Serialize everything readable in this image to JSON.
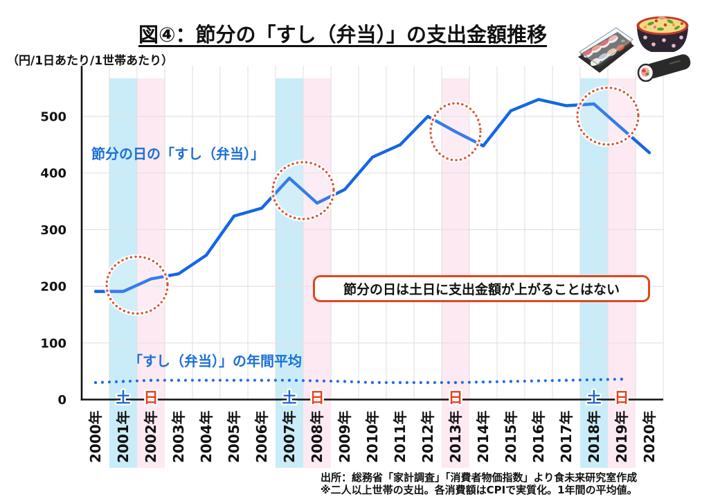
{
  "header": {
    "title": "図④：節分の「すし（弁当）」の支出金額推移",
    "unit_label": "（円/1日あたり/1世帯あたり）"
  },
  "chart_data": {
    "type": "line",
    "title": "図④：節分の「すし（弁当）」の支出金額推移",
    "xlabel": "",
    "ylabel": "（円/1日あたり/1世帯あたり）",
    "ylim": [
      0,
      590
    ],
    "yticks": [
      0,
      100,
      200,
      300,
      400,
      500
    ],
    "ytick_labels": [
      "0",
      "100",
      "200",
      "300",
      "400",
      "500"
    ],
    "grid": true,
    "legend": "none",
    "categories": [
      "2000年",
      "2001年",
      "2002年",
      "2003年",
      "2004年",
      "2005年",
      "2006年",
      "2007年",
      "2008年",
      "2009年",
      "2010年",
      "2011年",
      "2012年",
      "2013年",
      "2014年",
      "2015年",
      "2016年",
      "2017年",
      "2018年",
      "2019年",
      "2020年"
    ],
    "series": [
      {
        "name": "節分の日の「すし（弁当）」",
        "line_style": "solid",
        "color": "#1466e6",
        "values": [
          191,
          191,
          213,
          222,
          255,
          324,
          338,
          391,
          347,
          371,
          428,
          450,
          500,
          473,
          448,
          510,
          530,
          519,
          522,
          479,
          436
        ]
      },
      {
        "name": "「すし（弁当）」の年間平均",
        "line_style": "dotted",
        "color": "#1e6ee6",
        "values": [
          30,
          32,
          34,
          34,
          34,
          34,
          34,
          34,
          33,
          32,
          30,
          30,
          30,
          30,
          31,
          32,
          33,
          34,
          35,
          36,
          null
        ]
      }
    ],
    "weekend_setsubun": [
      {
        "category": "2001年",
        "day_label": "土",
        "day": "saturday"
      },
      {
        "category": "2002年",
        "day_label": "日",
        "day": "sunday"
      },
      {
        "category": "2007年",
        "day_label": "土",
        "day": "saturday"
      },
      {
        "category": "2008年",
        "day_label": "日",
        "day": "sunday"
      },
      {
        "category": "2013年",
        "day_label": "日",
        "day": "sunday"
      },
      {
        "category": "2018年",
        "day_label": "土",
        "day": "saturday"
      },
      {
        "category": "2019年",
        "day_label": "日",
        "day": "sunday"
      }
    ],
    "colors": {
      "saturday_band": "#c9ecf8",
      "sunday_band": "#fde9f2",
      "saturday_text": "#1a66d8",
      "sunday_text": "#e8401c",
      "highlight_circle": "#e0502a",
      "callout_border": "#e0461c",
      "series_label": "#1a6fd6"
    },
    "annotations": {
      "callout_text": "節分の日は土日に支出金額が上がることはない",
      "circled_groups": [
        [
          "2001年",
          "2002年"
        ],
        [
          "2007年",
          "2008年"
        ],
        [
          "2013年"
        ],
        [
          "2018年",
          "2019年"
        ]
      ]
    }
  },
  "footer": {
    "source": "出所：総務省「家計調査」「消費者物価指数」より食未来研究室作成",
    "note": "※二人以上世帯の支出。各消費額はCPIで実質化。1年間の平均値。"
  },
  "illustration": {
    "icon": "sushi-bento-illustration",
    "items": [
      "sushi-tray-icon",
      "chirashi-bowl-icon",
      "ehomaki-roll-icon"
    ]
  }
}
